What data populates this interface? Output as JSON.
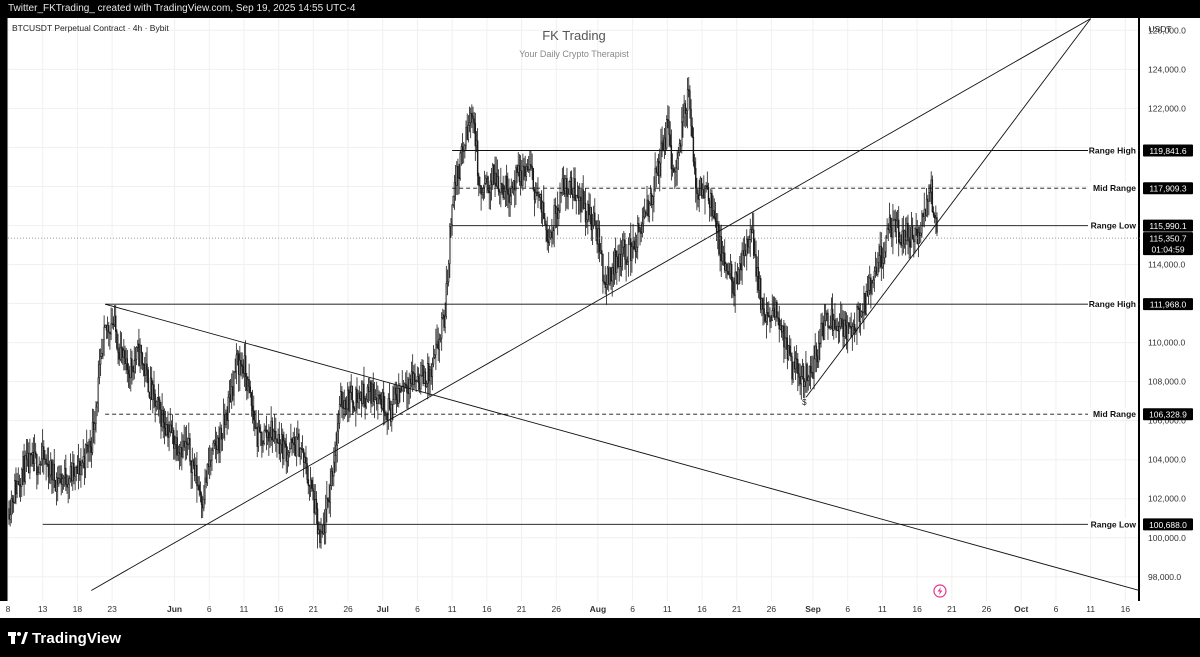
{
  "header": {
    "caption": "Twitter_FKTrading_ created with TradingView.com, Sep 19, 2025 14:55 UTC-4"
  },
  "symbol_info": "BTCUSDT Perpetual Contract · 4h · Bybit",
  "watermark": {
    "title": "FK Trading",
    "subtitle": "Your Daily Crypto Therapist"
  },
  "footer": {
    "logo_text": "TradingView",
    "logo_icon": "tradingview-logo-icon"
  },
  "colors": {
    "background": "#ffffff",
    "candle": "#1a1a1a",
    "grid": "#f0f0f0",
    "axis_text": "#333333",
    "label_bg": "#000000",
    "label_text": "#ffffff",
    "accent_icon": "#e0358a"
  },
  "chart_data": {
    "type": "candlestick",
    "currency": "USDT",
    "y_axis": {
      "min": 96760,
      "max": 126630,
      "ticks": [
        "126,000.0",
        "124,000.0",
        "122,000.0",
        "120,000.0",
        "118,000.0",
        "116,000.0",
        "114,000.0",
        "112,000.0",
        "110,000.0",
        "108,000.0",
        "106,000.0",
        "104,000.0",
        "102,000.0",
        "100,000.0",
        "98,000.0"
      ],
      "tick_values": [
        126000,
        124000,
        122000,
        120000,
        118000,
        116000,
        114000,
        112000,
        110000,
        108000,
        106000,
        104000,
        102000,
        100000,
        98000
      ]
    },
    "x_axis": {
      "labels": [
        "8",
        "13",
        "18",
        "23",
        "Jun",
        "6",
        "11",
        "16",
        "21",
        "26",
        "Jul",
        "6",
        "11",
        "16",
        "21",
        "26",
        "Aug",
        "6",
        "11",
        "16",
        "21",
        "26",
        "Sep",
        "6",
        "11",
        "16",
        "21",
        "26",
        "Oct",
        "6",
        "11",
        "16"
      ],
      "dates": [
        "2025-05-08",
        "2025-05-13",
        "2025-05-18",
        "2025-05-23",
        "2025-06-01",
        "2025-06-06",
        "2025-06-11",
        "2025-06-16",
        "2025-06-21",
        "2025-06-26",
        "2025-07-01",
        "2025-07-06",
        "2025-07-11",
        "2025-07-16",
        "2025-07-21",
        "2025-07-26",
        "2025-08-01",
        "2025-08-06",
        "2025-08-11",
        "2025-08-16",
        "2025-08-21",
        "2025-08-26",
        "2025-09-01",
        "2025-09-06",
        "2025-09-11",
        "2025-09-16",
        "2025-09-21",
        "2025-09-26",
        "2025-10-01",
        "2025-10-06",
        "2025-10-11",
        "2025-10-16"
      ]
    },
    "price_path": [
      [
        "2025-05-08",
        101500
      ],
      [
        "2025-05-10",
        103500
      ],
      [
        "2025-05-13",
        104000
      ],
      [
        "2025-05-15",
        103000
      ],
      [
        "2025-05-18",
        103300
      ],
      [
        "2025-05-20",
        105000
      ],
      [
        "2025-05-22",
        110500
      ],
      [
        "2025-05-23",
        111200
      ],
      [
        "2025-05-25",
        108500
      ],
      [
        "2025-05-27",
        109500
      ],
      [
        "2025-05-29",
        107000
      ],
      [
        "2025-06-01",
        105000
      ],
      [
        "2025-06-03",
        104500
      ],
      [
        "2025-06-05",
        102000
      ],
      [
        "2025-06-06",
        103800
      ],
      [
        "2025-06-08",
        105500
      ],
      [
        "2025-06-10",
        109000
      ],
      [
        "2025-06-11",
        108800
      ],
      [
        "2025-06-13",
        105000
      ],
      [
        "2025-06-15",
        105500
      ],
      [
        "2025-06-17",
        104500
      ],
      [
        "2025-06-19",
        104800
      ],
      [
        "2025-06-21",
        102000
      ],
      [
        "2025-06-22",
        99500
      ],
      [
        "2025-06-23",
        101500
      ],
      [
        "2025-06-25",
        107000
      ],
      [
        "2025-06-27",
        107200
      ],
      [
        "2025-06-30",
        107500
      ],
      [
        "2025-07-02",
        106500
      ],
      [
        "2025-07-04",
        108000
      ],
      [
        "2025-07-06",
        108200
      ],
      [
        "2025-07-08",
        108300
      ],
      [
        "2025-07-10",
        111500
      ],
      [
        "2025-07-11",
        117500
      ],
      [
        "2025-07-14",
        122000
      ],
      [
        "2025-07-15",
        117500
      ],
      [
        "2025-07-17",
        118500
      ],
      [
        "2025-07-19",
        117800
      ],
      [
        "2025-07-22",
        119000
      ],
      [
        "2025-07-25",
        115500
      ],
      [
        "2025-07-27",
        118000
      ],
      [
        "2025-07-29",
        117800
      ],
      [
        "2025-08-01",
        115500
      ],
      [
        "2025-08-02",
        113000
      ],
      [
        "2025-08-04",
        114500
      ],
      [
        "2025-08-06",
        114800
      ],
      [
        "2025-08-08",
        116500
      ],
      [
        "2025-08-11",
        121000
      ],
      [
        "2025-08-12",
        118500
      ],
      [
        "2025-08-14",
        123000
      ],
      [
        "2025-08-15",
        118000
      ],
      [
        "2025-08-17",
        117800
      ],
      [
        "2025-08-19",
        114000
      ],
      [
        "2025-08-21",
        112800
      ],
      [
        "2025-08-23",
        116000
      ],
      [
        "2025-08-25",
        111000
      ],
      [
        "2025-08-27",
        111500
      ],
      [
        "2025-08-29",
        108500
      ],
      [
        "2025-08-31",
        108400
      ],
      [
        "2025-09-01",
        108800
      ],
      [
        "2025-09-03",
        111500
      ],
      [
        "2025-09-05",
        111000
      ],
      [
        "2025-09-06",
        110500
      ],
      [
        "2025-09-08",
        111500
      ],
      [
        "2025-09-10",
        113500
      ],
      [
        "2025-09-12",
        115800
      ],
      [
        "2025-09-14",
        115500
      ],
      [
        "2025-09-16",
        115300
      ],
      [
        "2025-09-17",
        116500
      ],
      [
        "2025-09-18",
        117800
      ],
      [
        "2025-09-19",
        115350
      ]
    ],
    "horizontal_levels": [
      {
        "label": "Range High",
        "value": "119,841.6",
        "price": 119841.6,
        "style": "solid",
        "start": "2025-07-11"
      },
      {
        "label": "Mid Range",
        "value": "117,909.3",
        "price": 117909.3,
        "style": "dashed",
        "start": "2025-07-11"
      },
      {
        "label": "Range Low",
        "value": "115,990.1",
        "price": 115990.1,
        "style": "solid",
        "start": "2025-07-11"
      },
      {
        "label": "Range High",
        "value": "111,968.0",
        "price": 111968.0,
        "style": "solid",
        "start": "2025-05-22"
      },
      {
        "label": "Mid Range",
        "value": "106,328.9",
        "price": 106328.9,
        "style": "dashed",
        "start": "2025-05-22"
      },
      {
        "label": "Range Low",
        "value": "100,688.0",
        "price": 100688.0,
        "style": "solid",
        "start": "2025-05-13"
      }
    ],
    "trendlines": [
      {
        "from": [
          "2025-05-20",
          97300
        ],
        "to": [
          "2025-10-11",
          126600
        ]
      },
      {
        "from": [
          "2025-05-22",
          111968
        ],
        "to": [
          "2025-10-18",
          97300
        ]
      },
      {
        "from": [
          "2025-08-31",
          107200
        ],
        "to": [
          "2025-10-11",
          126600
        ]
      }
    ],
    "current_price": {
      "value": "115,350.7",
      "price": 115350.7,
      "countdown": "01:04:59"
    },
    "marker": {
      "symbol": "$",
      "date": "2025-08-31",
      "price": 107000
    },
    "events": [
      {
        "icon": "lightning-icon",
        "date": "2025-09-19"
      }
    ]
  }
}
